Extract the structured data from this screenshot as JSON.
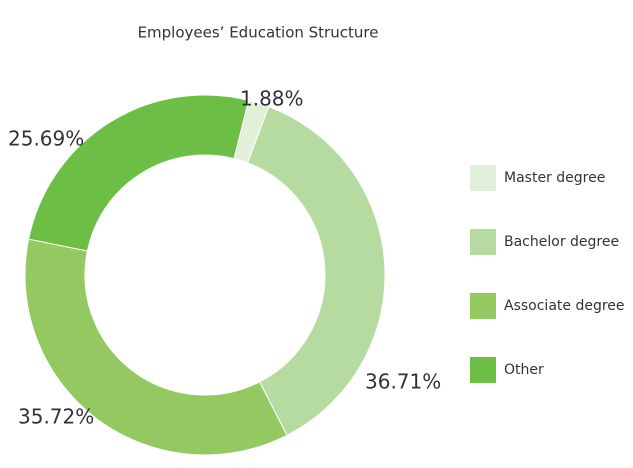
{
  "chart_data": {
    "type": "pie",
    "title": "Employees’ Education Structure",
    "categories": [
      "Master degree",
      "Bachelor degree",
      "Associate degree",
      "Other"
    ],
    "values": [
      1.88,
      36.71,
      35.72,
      25.69
    ],
    "value_labels": [
      "1.88%",
      "36.71%",
      "35.72%",
      "25.69%"
    ],
    "colors": [
      "#e2f0d9",
      "#b5dba0",
      "#94c962",
      "#6cbf44"
    ],
    "legend": "right"
  }
}
